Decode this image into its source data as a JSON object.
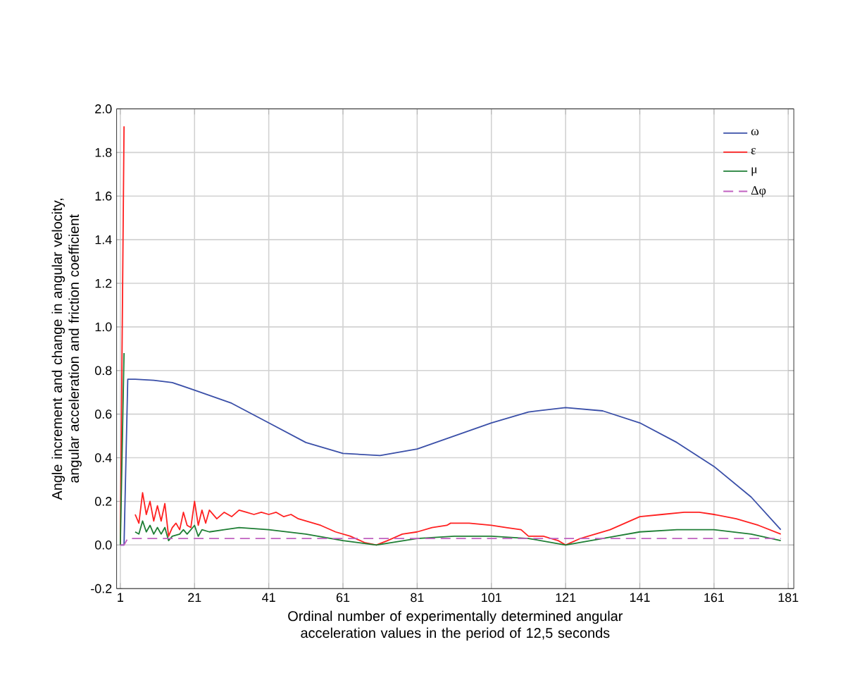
{
  "chart_data": {
    "type": "line",
    "xlabel": "Ordinal number of experimentally determined angular acceleration values in the period of 12,5 seconds",
    "ylabel": "Angle increment and change in angular velocity, angular acceleration and friction coefficient",
    "xlim": [
      0,
      182.5
    ],
    "ylim": [
      -0.2,
      2.0
    ],
    "xticks": [
      1,
      21,
      41,
      61,
      81,
      101,
      121,
      141,
      161,
      181
    ],
    "yticks": [
      {
        "value": -0.2,
        "label": "-0.2"
      },
      {
        "value": 0,
        "label": "0.0"
      },
      0.2,
      0.4,
      0.6,
      0.8,
      {
        "value": 1,
        "label": "1.0"
      },
      1.2,
      1.4,
      1.6,
      1.8,
      {
        "value": 2,
        "label": "2.0"
      }
    ],
    "grid": true,
    "legend": "top right",
    "marker": "none",
    "series": [
      {
        "name": "ω",
        "color": "#3a4fa8",
        "line_style": "solid",
        "x": [
          1,
          2,
          3,
          5,
          10,
          15,
          21,
          31,
          41,
          51,
          61,
          71,
          81,
          91,
          101,
          111,
          121,
          131,
          141,
          151,
          161,
          171,
          179
        ],
        "values": [
          0,
          0,
          0.76,
          0.76,
          0.755,
          0.745,
          0.71,
          0.65,
          0.56,
          0.47,
          0.42,
          0.41,
          0.44,
          0.5,
          0.56,
          0.61,
          0.63,
          0.615,
          0.56,
          0.47,
          0.36,
          0.22,
          0.07
        ]
      },
      {
        "name": "ε",
        "color": "#ff2020",
        "line_style": "solid",
        "x": [
          1,
          2,
          3,
          5,
          6,
          7,
          8,
          9,
          10,
          11,
          12,
          13,
          14,
          15,
          16,
          17,
          18,
          19,
          20,
          21,
          22,
          23,
          24,
          25,
          27,
          29,
          31,
          33,
          35,
          37,
          39,
          41,
          43,
          45,
          47,
          49,
          51,
          55,
          59,
          63,
          67,
          70,
          73,
          77,
          81,
          85,
          89,
          90,
          95,
          101,
          105,
          109,
          111,
          115,
          119,
          121,
          125,
          129,
          133,
          137,
          141,
          147,
          153,
          157,
          161,
          167,
          173,
          179
        ],
        "values": [
          0,
          1.92,
          null,
          0.14,
          0.1,
          0.24,
          0.14,
          0.2,
          0.11,
          0.18,
          0.11,
          0.19,
          0.04,
          0.08,
          0.1,
          0.07,
          0.15,
          0.09,
          0.08,
          0.2,
          0.09,
          0.16,
          0.1,
          0.16,
          0.12,
          0.15,
          0.13,
          0.16,
          0.15,
          0.14,
          0.15,
          0.14,
          0.15,
          0.13,
          0.14,
          0.12,
          0.11,
          0.09,
          0.06,
          0.04,
          0.01,
          0,
          0.02,
          0.05,
          0.06,
          0.08,
          0.09,
          0.1,
          0.1,
          0.09,
          0.08,
          0.07,
          0.04,
          0.04,
          0.02,
          0,
          0.03,
          0.05,
          0.07,
          0.1,
          0.13,
          0.14,
          0.15,
          0.15,
          0.14,
          0.12,
          0.09,
          0.05
        ]
      },
      {
        "name": "μ",
        "color": "#1e7e34",
        "line_style": "solid",
        "x": [
          1,
          2,
          3,
          5,
          6,
          7,
          8,
          9,
          10,
          11,
          12,
          13,
          14,
          15,
          17,
          18,
          19,
          21,
          22,
          23,
          25,
          29,
          33,
          41,
          51,
          61,
          70,
          81,
          91,
          101,
          111,
          121,
          131,
          141,
          151,
          161,
          171,
          179
        ],
        "values": [
          0,
          0.88,
          null,
          0.06,
          0.05,
          0.11,
          0.06,
          0.09,
          0.05,
          0.08,
          0.05,
          0.08,
          0.02,
          0.04,
          0.05,
          0.07,
          0.05,
          0.09,
          0.04,
          0.07,
          0.06,
          0.07,
          0.08,
          0.07,
          0.05,
          0.02,
          0,
          0.03,
          0.04,
          0.04,
          0.03,
          0,
          0.03,
          0.06,
          0.07,
          0.07,
          0.05,
          0.02
        ]
      },
      {
        "name": "Δφ",
        "color": "#c060c0",
        "line_style": "dashed",
        "x": [
          1,
          2,
          3,
          179
        ],
        "values": [
          0,
          0,
          0.03,
          0.03
        ]
      }
    ]
  }
}
